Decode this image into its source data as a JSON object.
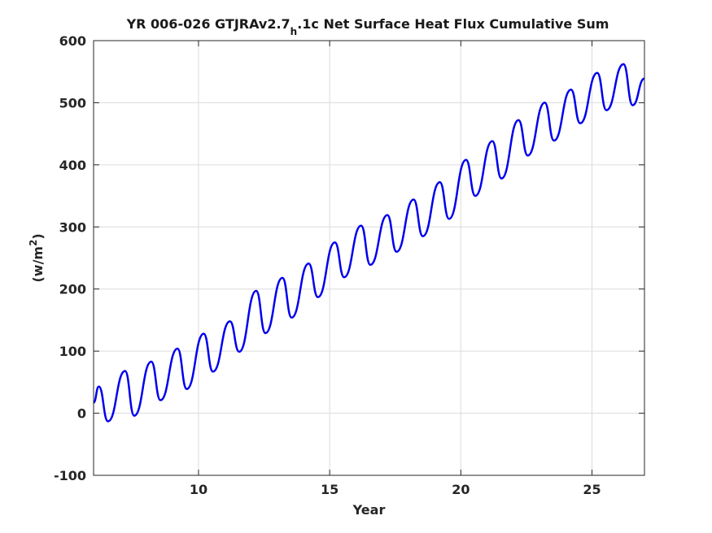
{
  "chart_data": {
    "type": "line",
    "title": {
      "main": "YR 006-026 GTJRAv2.7",
      "subscript": "h",
      "rest": ".1c Net Surface Heat Flux  Cumulative Sum"
    },
    "xlabel": "Year",
    "ylabel": {
      "base": "(w/m",
      "superscript": "2",
      "close": ")"
    },
    "xlim": [
      6,
      27
    ],
    "ylim": [
      -100,
      600
    ],
    "xticks": [
      10,
      15,
      20,
      25
    ],
    "xtick_labels": [
      "10",
      "15",
      "20",
      "25"
    ],
    "yticks": [
      -100,
      0,
      100,
      200,
      300,
      400,
      500,
      600
    ],
    "ytick_labels": [
      "-100",
      "0",
      "100",
      "200",
      "300",
      "400",
      "500",
      "600"
    ],
    "grid": true,
    "series": [
      {
        "color": "#0000ee",
        "cycle_peaks": [
          {
            "x": 6.2,
            "y": 43
          },
          {
            "x": 7.2,
            "y": 68
          },
          {
            "x": 8.2,
            "y": 83
          },
          {
            "x": 9.2,
            "y": 104
          },
          {
            "x": 10.2,
            "y": 128
          },
          {
            "x": 11.2,
            "y": 148
          },
          {
            "x": 12.2,
            "y": 197
          },
          {
            "x": 13.2,
            "y": 218
          },
          {
            "x": 14.2,
            "y": 241
          },
          {
            "x": 15.2,
            "y": 275
          },
          {
            "x": 16.2,
            "y": 302
          },
          {
            "x": 17.2,
            "y": 319
          },
          {
            "x": 18.2,
            "y": 344
          },
          {
            "x": 19.2,
            "y": 372
          },
          {
            "x": 20.2,
            "y": 408
          },
          {
            "x": 21.2,
            "y": 438
          },
          {
            "x": 22.2,
            "y": 472
          },
          {
            "x": 23.2,
            "y": 500
          },
          {
            "x": 24.2,
            "y": 521
          },
          {
            "x": 25.2,
            "y": 548
          },
          {
            "x": 26.2,
            "y": 562
          }
        ],
        "cycle_troughs": [
          {
            "x": 6.55,
            "y": -13
          },
          {
            "x": 7.55,
            "y": -4
          },
          {
            "x": 8.55,
            "y": 21
          },
          {
            "x": 9.55,
            "y": 39
          },
          {
            "x": 10.55,
            "y": 67
          },
          {
            "x": 11.55,
            "y": 99
          },
          {
            "x": 12.55,
            "y": 129
          },
          {
            "x": 13.55,
            "y": 154
          },
          {
            "x": 14.55,
            "y": 187
          },
          {
            "x": 15.55,
            "y": 219
          },
          {
            "x": 16.55,
            "y": 239
          },
          {
            "x": 17.55,
            "y": 260
          },
          {
            "x": 18.55,
            "y": 285
          },
          {
            "x": 19.55,
            "y": 313
          },
          {
            "x": 20.55,
            "y": 350
          },
          {
            "x": 21.55,
            "y": 378
          },
          {
            "x": 22.55,
            "y": 415
          },
          {
            "x": 23.55,
            "y": 439
          },
          {
            "x": 24.55,
            "y": 467
          },
          {
            "x": 25.55,
            "y": 488
          },
          {
            "x": 26.55,
            "y": 496
          }
        ],
        "start": {
          "x": 6.0,
          "y": 17
        },
        "end": {
          "x": 27.0,
          "y": 539
        }
      }
    ]
  }
}
